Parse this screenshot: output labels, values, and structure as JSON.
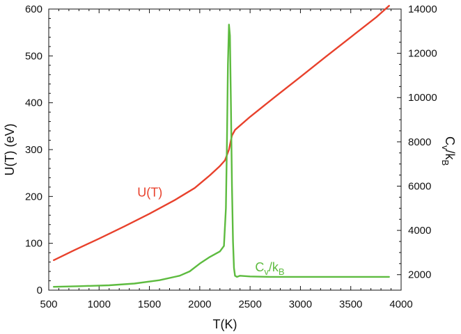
{
  "chart_data": {
    "type": "line",
    "xlabel": "T(K)",
    "ylabel": "U(T) (eV)",
    "y2label": {
      "main": "C",
      "sub1": "v",
      "sep": "/k",
      "sub2": "B"
    },
    "xlim": [
      500,
      4000
    ],
    "ylim": [
      0,
      600
    ],
    "y2lim": [
      1300,
      14000
    ],
    "x_ticks": [
      "500",
      "1000",
      "1500",
      "2000",
      "2500",
      "3000",
      "3500",
      "4000"
    ],
    "y_ticks": [
      "0",
      "100",
      "200",
      "300",
      "400",
      "500",
      "600"
    ],
    "y2_ticks": [
      "2000",
      "4000",
      "6000",
      "8000",
      "10000",
      "12000",
      "14000"
    ],
    "grid": false,
    "series": [
      {
        "name": "U(T)",
        "axis": "left",
        "color": "#e8412c",
        "x": [
          550,
          750,
          1000,
          1250,
          1500,
          1750,
          1950,
          2100,
          2200,
          2250,
          2290,
          2320,
          2350,
          2500,
          2750,
          3000,
          3250,
          3500,
          3750,
          3880
        ],
        "y": [
          64,
          85,
          110,
          136,
          163,
          192,
          218,
          245,
          265,
          277,
          300,
          330,
          342,
          370,
          413,
          455,
          498,
          540,
          582,
          607
        ]
      },
      {
        "name": "Cv/kB",
        "axis": "right",
        "color": "#5dbb3f",
        "x": [
          550,
          800,
          1100,
          1350,
          1600,
          1800,
          1900,
          2000,
          2100,
          2200,
          2240,
          2260,
          2270,
          2280,
          2290,
          2300,
          2310,
          2320,
          2330,
          2340,
          2350,
          2370,
          2400,
          2500,
          2700,
          3000,
          3500,
          3880
        ],
        "y": [
          1450,
          1480,
          1520,
          1600,
          1750,
          1950,
          2150,
          2500,
          2800,
          3050,
          3300,
          5000,
          8000,
          11500,
          13300,
          12800,
          9500,
          6000,
          3500,
          2300,
          1950,
          1900,
          1950,
          1920,
          1900,
          1900,
          1900,
          1900
        ]
      }
    ],
    "annotations": [
      {
        "text": "U(T)",
        "color": "#e8412c",
        "x": 1380,
        "y": 200,
        "axis": "left"
      },
      {
        "main": "C",
        "sub1": "v",
        "sep": "/k",
        "sub2": "B",
        "color": "#5dbb3f",
        "x": 2550,
        "y": 2150,
        "axis": "right"
      }
    ]
  }
}
